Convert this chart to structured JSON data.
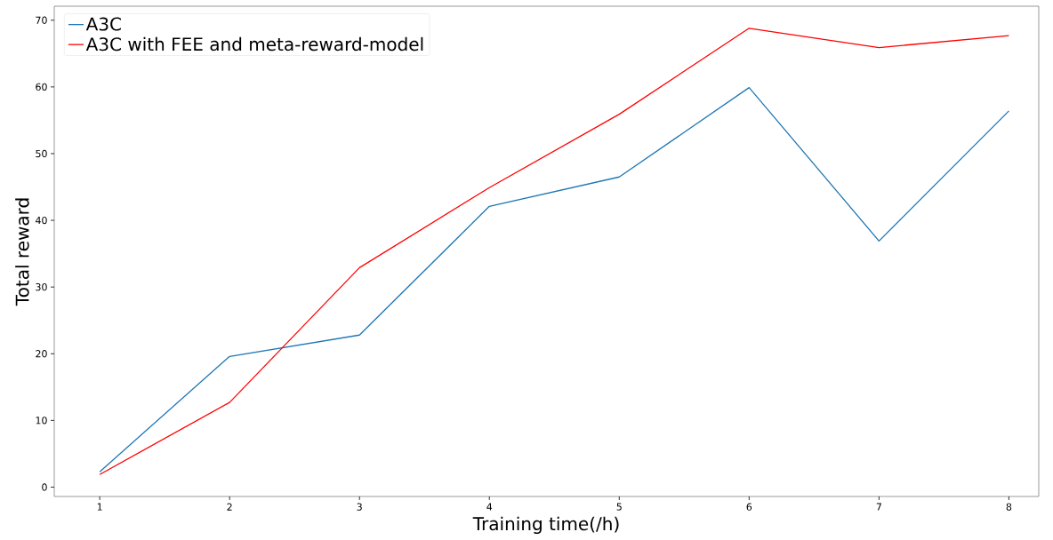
{
  "chart_data": {
    "type": "line",
    "xlabel": "Training time(/h)",
    "ylabel": "Total reward",
    "x": [
      1,
      2,
      3,
      4,
      5,
      6,
      7,
      8
    ],
    "series": [
      {
        "name": "A3C",
        "color": "#1f77b4",
        "values": [
          2.3,
          19.6,
          22.8,
          42.1,
          46.5,
          59.9,
          36.9,
          56.4
        ]
      },
      {
        "name": "A3C with FEE and meta-reward-model",
        "color": "#ff0000",
        "values": [
          1.9,
          12.7,
          32.9,
          44.9,
          55.9,
          68.8,
          65.9,
          67.7
        ]
      }
    ],
    "xlim": [
      0.65,
      8.23
    ],
    "ylim": [
      -1.4,
      72.1
    ],
    "xticks": [
      1,
      2,
      3,
      4,
      5,
      6,
      7,
      8
    ],
    "yticks": [
      0,
      10,
      20,
      30,
      40,
      50,
      60,
      70
    ],
    "legend": "top left",
    "grid": false,
    "marker": "none",
    "line_style": "solid"
  }
}
